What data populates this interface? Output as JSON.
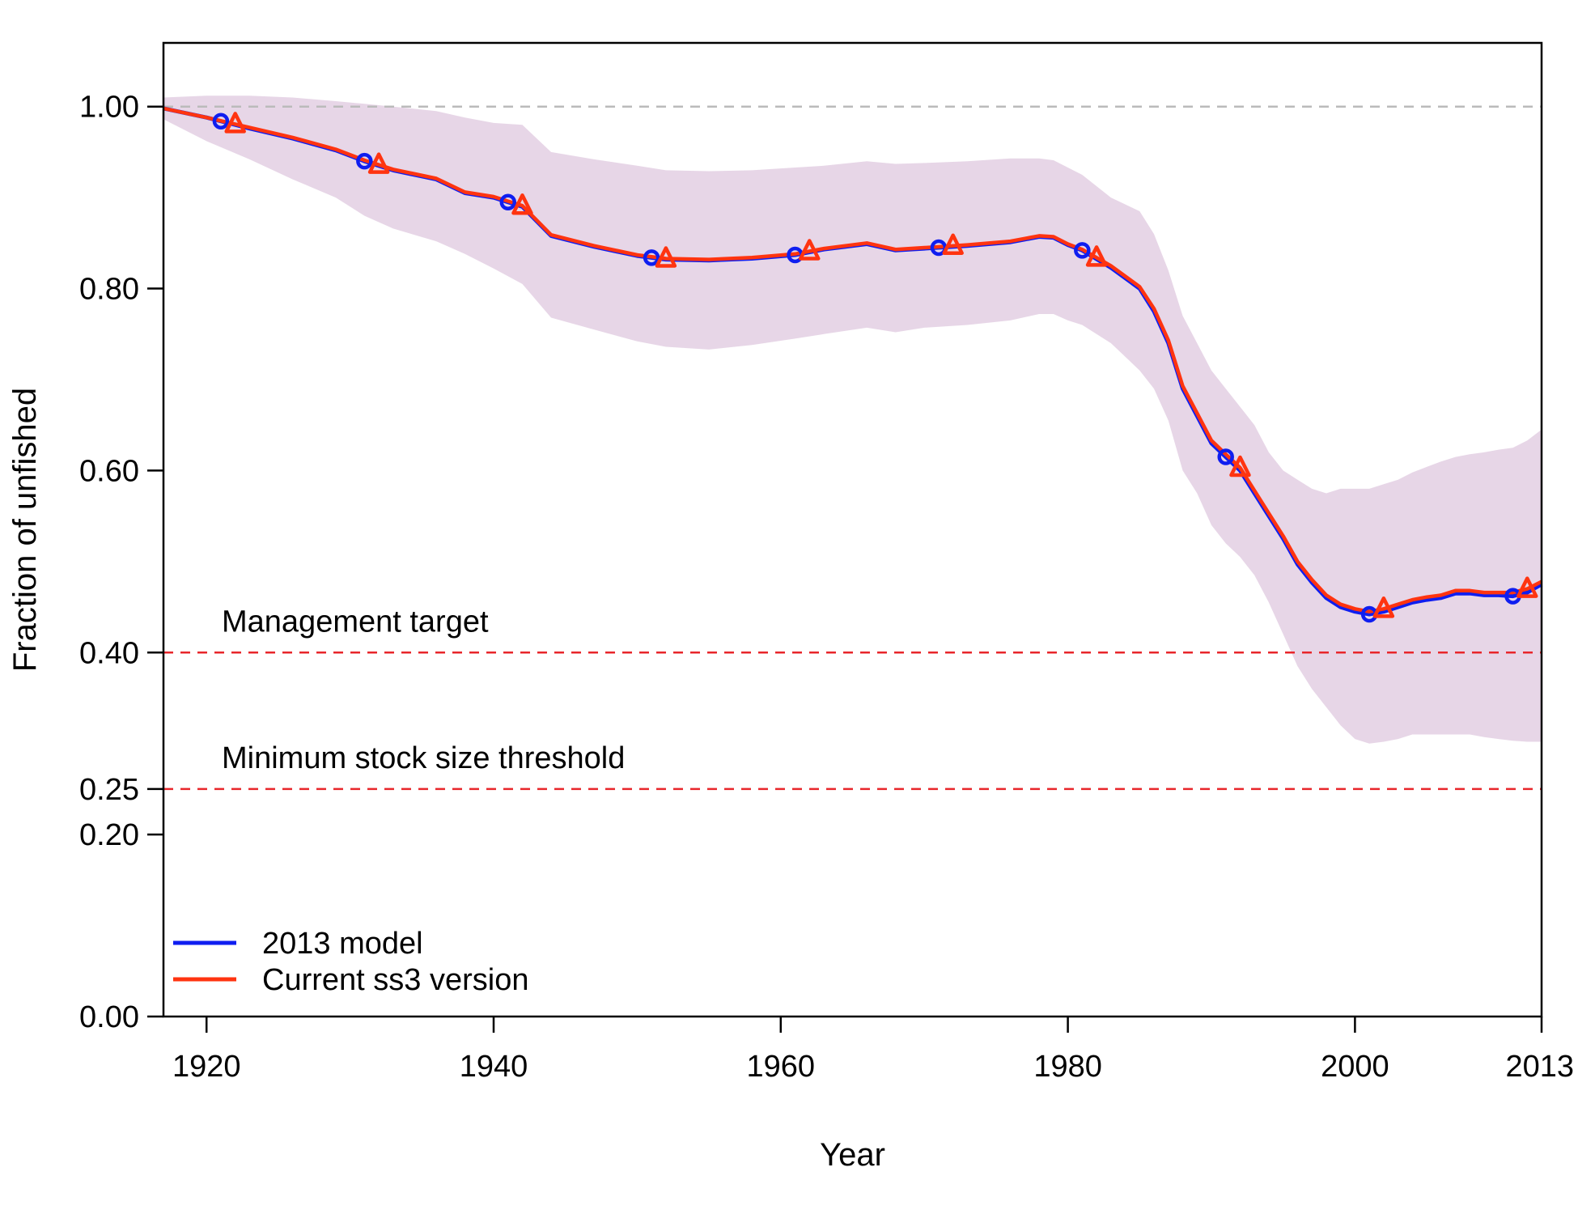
{
  "chart_data": {
    "type": "line",
    "title": "",
    "xlabel": "Year",
    "ylabel": "Fraction of unfished",
    "xlim": [
      1917,
      2013
    ],
    "ylim": [
      0,
      1.07
    ],
    "x_ticks": [
      1920,
      1940,
      1960,
      1980,
      2000,
      2013
    ],
    "y_ticks": [
      0.0,
      0.2,
      0.25,
      0.4,
      0.6,
      0.8,
      1.0
    ],
    "y_tick_labels": [
      "0.00",
      "0.20",
      "0.25",
      "0.40",
      "0.60",
      "0.80",
      "1.00"
    ],
    "reference_lines": [
      {
        "y": 1.0,
        "label": "",
        "color": "#bbbbbb"
      },
      {
        "y": 0.4,
        "label": "Management target",
        "color": "#e8262b"
      },
      {
        "y": 0.25,
        "label": "Minimum stock size threshold",
        "color": "#e8262b"
      }
    ],
    "legend": {
      "position": "bottom-left"
    },
    "years": [
      1917,
      1920,
      1923,
      1926,
      1929,
      1931,
      1933,
      1936,
      1938,
      1940,
      1942,
      1944,
      1947,
      1950,
      1952,
      1955,
      1958,
      1961,
      1963,
      1966,
      1968,
      1970,
      1973,
      1976,
      1978,
      1979,
      1980,
      1981,
      1983,
      1985,
      1986,
      1987,
      1988,
      1989,
      1990,
      1991,
      1992,
      1993,
      1994,
      1995,
      1996,
      1997,
      1998,
      1999,
      2000,
      2001,
      2002,
      2003,
      2004,
      2005,
      2006,
      2007,
      2008,
      2009,
      2010,
      2011,
      2012,
      2013
    ],
    "series": [
      {
        "name": "2013 model",
        "color": "#0f1ef0",
        "marker": "circle",
        "marker_years": [
          1921,
          1931,
          1941,
          1951,
          1961,
          1971,
          1981,
          1991,
          2001,
          2011
        ],
        "values": [
          0.998,
          0.988,
          0.976,
          0.965,
          0.952,
          0.94,
          0.93,
          0.92,
          0.905,
          0.9,
          0.89,
          0.858,
          0.846,
          0.836,
          0.832,
          0.831,
          0.833,
          0.837,
          0.843,
          0.849,
          0.842,
          0.844,
          0.847,
          0.851,
          0.857,
          0.856,
          0.848,
          0.842,
          0.823,
          0.8,
          0.775,
          0.74,
          0.69,
          0.66,
          0.63,
          0.615,
          0.6,
          0.575,
          0.55,
          0.525,
          0.497,
          0.477,
          0.46,
          0.45,
          0.445,
          0.442,
          0.445,
          0.45,
          0.455,
          0.458,
          0.46,
          0.465,
          0.465,
          0.463,
          0.463,
          0.462,
          0.466,
          0.475
        ]
      },
      {
        "name": "Current ss3 version",
        "color": "#ff3410",
        "marker": "triangle",
        "marker_years": [
          1922,
          1932,
          1942,
          1952,
          1962,
          1972,
          1982,
          1992,
          2002,
          2012
        ],
        "values": [
          0.998,
          0.988,
          0.977,
          0.966,
          0.953,
          0.941,
          0.931,
          0.921,
          0.906,
          0.901,
          0.891,
          0.859,
          0.847,
          0.837,
          0.833,
          0.832,
          0.834,
          0.838,
          0.844,
          0.85,
          0.843,
          0.845,
          0.848,
          0.852,
          0.858,
          0.857,
          0.849,
          0.843,
          0.825,
          0.802,
          0.778,
          0.743,
          0.693,
          0.663,
          0.633,
          0.618,
          0.603,
          0.578,
          0.553,
          0.528,
          0.5,
          0.48,
          0.463,
          0.453,
          0.448,
          0.445,
          0.448,
          0.453,
          0.458,
          0.461,
          0.463,
          0.468,
          0.468,
          0.466,
          0.466,
          0.466,
          0.47,
          0.478
        ]
      }
    ],
    "confidence_band": {
      "color": "#c9a3c9",
      "upper": [
        1.01,
        1.012,
        1.012,
        1.01,
        1.006,
        1.003,
        1.0,
        0.995,
        0.988,
        0.982,
        0.98,
        0.95,
        0.942,
        0.935,
        0.93,
        0.929,
        0.93,
        0.933,
        0.935,
        0.94,
        0.937,
        0.938,
        0.94,
        0.943,
        0.943,
        0.941,
        0.933,
        0.925,
        0.9,
        0.885,
        0.86,
        0.82,
        0.77,
        0.74,
        0.71,
        0.69,
        0.67,
        0.65,
        0.62,
        0.6,
        0.59,
        0.58,
        0.575,
        0.58,
        0.58,
        0.58,
        0.585,
        0.59,
        0.598,
        0.604,
        0.61,
        0.615,
        0.618,
        0.62,
        0.623,
        0.625,
        0.633,
        0.645
      ],
      "lower": [
        0.986,
        0.962,
        0.942,
        0.92,
        0.9,
        0.88,
        0.866,
        0.852,
        0.838,
        0.822,
        0.805,
        0.768,
        0.755,
        0.742,
        0.736,
        0.733,
        0.738,
        0.745,
        0.75,
        0.757,
        0.752,
        0.757,
        0.76,
        0.765,
        0.772,
        0.772,
        0.765,
        0.76,
        0.74,
        0.71,
        0.69,
        0.655,
        0.6,
        0.575,
        0.54,
        0.52,
        0.505,
        0.485,
        0.455,
        0.42,
        0.385,
        0.36,
        0.34,
        0.32,
        0.305,
        0.3,
        0.302,
        0.305,
        0.31,
        0.31,
        0.31,
        0.31,
        0.31,
        0.307,
        0.305,
        0.303,
        0.302,
        0.302
      ]
    }
  }
}
